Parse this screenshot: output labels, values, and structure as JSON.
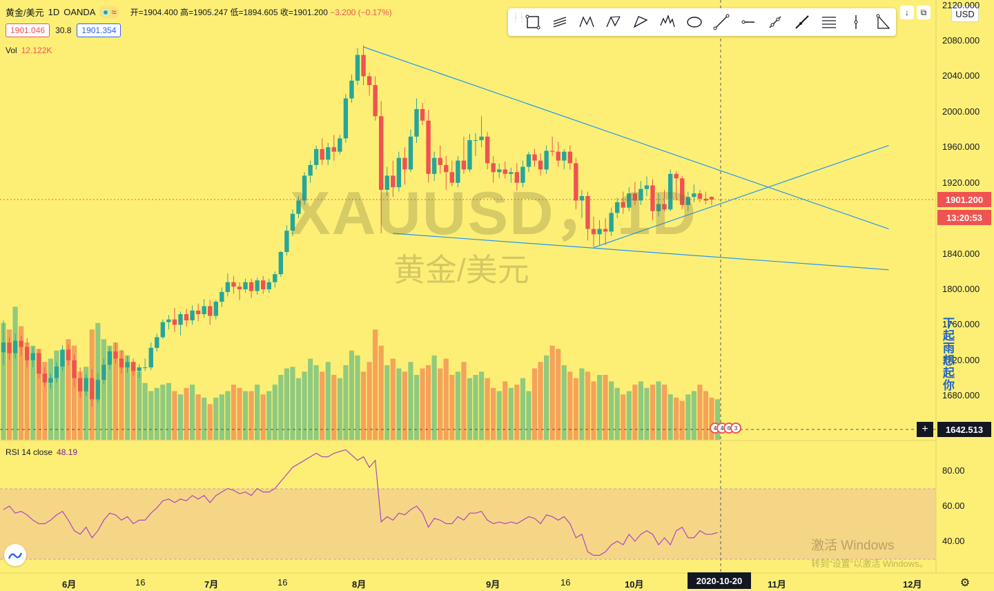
{
  "legend": {
    "symbol": "黄金/美元",
    "interval": "1D",
    "source": "OANDA",
    "ohlc": {
      "open_label": "开=1904.400",
      "high_label": "高=1905.247",
      "low_label": "低=1894.605",
      "close_label": "收=1901.200",
      "change_label": "−3.200 (−0.17%)"
    },
    "bid": "1901.046",
    "spread": "30.8",
    "ask": "1901.354",
    "volume_label": "Vol",
    "volume_value": "12.122K",
    "rsi_label": "RSI 14 close",
    "rsi_value": "48.19"
  },
  "watermark": {
    "ticker": "XAUUSD，1D",
    "name": "黄金/美元"
  },
  "toolbar": {
    "tools": [
      "rectangle-pattern-icon",
      "parallel-channel-icon",
      "xabcd-pattern-icon",
      "abcd-pattern-icon",
      "triangle-pattern-icon",
      "elliott-wave-icon",
      "ellipse-icon",
      "trend-line-icon",
      "horizontal-ray-icon",
      "info-line-icon",
      "extended-line-icon",
      "fib-retracement-icon",
      "vertical-line-icon",
      "triangle-tool-icon"
    ]
  },
  "currency": "USD",
  "price_axis": [
    "2120.000",
    "2080.000",
    "2040.000",
    "2000.000",
    "1960.000",
    "1920.000",
    "1840.000",
    "1800.000",
    "1760.000",
    "1720.000",
    "1680.000"
  ],
  "rsi_axis": [
    "80.00",
    "60.00",
    "40.00"
  ],
  "last_price": "1901.200",
  "countdown": "13:20:53",
  "crosshair_price": "1642.513",
  "crosshair_date": "2020-10-20",
  "time_axis": [
    {
      "label": "6月",
      "bold": true
    },
    {
      "label": "16",
      "bold": false
    },
    {
      "label": "7月",
      "bold": true
    },
    {
      "label": "16",
      "bold": false
    },
    {
      "label": "8月",
      "bold": true
    },
    {
      "label": "9月",
      "bold": true
    },
    {
      "label": "16",
      "bold": false
    },
    {
      "label": "10月",
      "bold": true
    },
    {
      "label": "11月",
      "bold": true
    },
    {
      "label": "12月",
      "bold": true
    }
  ],
  "overlay_text": "下起雨想起你",
  "windows_activation": {
    "title": "激活 Windows",
    "subtitle": "转到\"设置\"以激活 Windows。"
  },
  "event_badges": [
    "4",
    "4",
    "6",
    "3"
  ],
  "colors": {
    "background": "#fdef76",
    "up": "#26a69a",
    "down": "#ef5350",
    "trendline": "#2196f3",
    "rsi_line": "#ab47bc",
    "rsi_band": "rgba(206,147,216,0.25)"
  },
  "chart_data": {
    "type": "candlestick",
    "price_range": [
      1640,
      2120
    ],
    "rsi_range": [
      20,
      100
    ],
    "candles": [
      {
        "o": 1729,
        "h": 1765,
        "l": 1715,
        "c": 1740
      },
      {
        "o": 1740,
        "h": 1746,
        "l": 1720,
        "c": 1728
      },
      {
        "o": 1728,
        "h": 1750,
        "l": 1722,
        "c": 1742
      },
      {
        "o": 1742,
        "h": 1748,
        "l": 1725,
        "c": 1735
      },
      {
        "o": 1735,
        "h": 1745,
        "l": 1712,
        "c": 1720
      },
      {
        "o": 1720,
        "h": 1735,
        "l": 1712,
        "c": 1728
      },
      {
        "o": 1728,
        "h": 1733,
        "l": 1700,
        "c": 1705
      },
      {
        "o": 1705,
        "h": 1712,
        "l": 1690,
        "c": 1695
      },
      {
        "o": 1695,
        "h": 1705,
        "l": 1688,
        "c": 1700
      },
      {
        "o": 1700,
        "h": 1718,
        "l": 1695,
        "c": 1713
      },
      {
        "o": 1713,
        "h": 1737,
        "l": 1708,
        "c": 1732
      },
      {
        "o": 1732,
        "h": 1738,
        "l": 1714,
        "c": 1720
      },
      {
        "o": 1720,
        "h": 1726,
        "l": 1690,
        "c": 1700
      },
      {
        "o": 1700,
        "h": 1712,
        "l": 1678,
        "c": 1685
      },
      {
        "o": 1685,
        "h": 1704,
        "l": 1680,
        "c": 1700
      },
      {
        "o": 1700,
        "h": 1710,
        "l": 1668,
        "c": 1676
      },
      {
        "o": 1676,
        "h": 1706,
        "l": 1672,
        "c": 1698
      },
      {
        "o": 1698,
        "h": 1722,
        "l": 1693,
        "c": 1715
      },
      {
        "o": 1715,
        "h": 1735,
        "l": 1710,
        "c": 1730
      },
      {
        "o": 1730,
        "h": 1740,
        "l": 1716,
        "c": 1722
      },
      {
        "o": 1722,
        "h": 1732,
        "l": 1705,
        "c": 1712
      },
      {
        "o": 1712,
        "h": 1725,
        "l": 1706,
        "c": 1718
      },
      {
        "o": 1718,
        "h": 1722,
        "l": 1703,
        "c": 1708
      },
      {
        "o": 1708,
        "h": 1716,
        "l": 1700,
        "c": 1712
      },
      {
        "o": 1712,
        "h": 1722,
        "l": 1708,
        "c": 1712
      },
      {
        "o": 1712,
        "h": 1740,
        "l": 1709,
        "c": 1734
      },
      {
        "o": 1734,
        "h": 1750,
        "l": 1730,
        "c": 1746
      },
      {
        "o": 1746,
        "h": 1766,
        "l": 1744,
        "c": 1763
      },
      {
        "o": 1763,
        "h": 1771,
        "l": 1755,
        "c": 1766
      },
      {
        "o": 1766,
        "h": 1779,
        "l": 1752,
        "c": 1760
      },
      {
        "o": 1760,
        "h": 1775,
        "l": 1748,
        "c": 1772
      },
      {
        "o": 1772,
        "h": 1778,
        "l": 1758,
        "c": 1765
      },
      {
        "o": 1765,
        "h": 1782,
        "l": 1760,
        "c": 1776
      },
      {
        "o": 1776,
        "h": 1784,
        "l": 1764,
        "c": 1772
      },
      {
        "o": 1772,
        "h": 1789,
        "l": 1768,
        "c": 1781
      },
      {
        "o": 1781,
        "h": 1788,
        "l": 1760,
        "c": 1770
      },
      {
        "o": 1770,
        "h": 1788,
        "l": 1766,
        "c": 1786
      },
      {
        "o": 1786,
        "h": 1802,
        "l": 1780,
        "c": 1797
      },
      {
        "o": 1797,
        "h": 1818,
        "l": 1792,
        "c": 1808
      },
      {
        "o": 1808,
        "h": 1815,
        "l": 1795,
        "c": 1803
      },
      {
        "o": 1803,
        "h": 1808,
        "l": 1788,
        "c": 1800
      },
      {
        "o": 1800,
        "h": 1812,
        "l": 1796,
        "c": 1808
      },
      {
        "o": 1808,
        "h": 1812,
        "l": 1790,
        "c": 1798
      },
      {
        "o": 1798,
        "h": 1813,
        "l": 1794,
        "c": 1810
      },
      {
        "o": 1810,
        "h": 1815,
        "l": 1795,
        "c": 1800
      },
      {
        "o": 1800,
        "h": 1812,
        "l": 1796,
        "c": 1808
      },
      {
        "o": 1808,
        "h": 1820,
        "l": 1802,
        "c": 1817
      },
      {
        "o": 1817,
        "h": 1843,
        "l": 1814,
        "c": 1842
      },
      {
        "o": 1842,
        "h": 1872,
        "l": 1838,
        "c": 1866
      },
      {
        "o": 1866,
        "h": 1890,
        "l": 1860,
        "c": 1885
      },
      {
        "o": 1885,
        "h": 1905,
        "l": 1880,
        "c": 1900
      },
      {
        "o": 1900,
        "h": 1932,
        "l": 1895,
        "c": 1928
      },
      {
        "o": 1928,
        "h": 1945,
        "l": 1920,
        "c": 1940
      },
      {
        "o": 1940,
        "h": 1962,
        "l": 1935,
        "c": 1958
      },
      {
        "o": 1958,
        "h": 1970,
        "l": 1940,
        "c": 1946
      },
      {
        "o": 1946,
        "h": 1965,
        "l": 1940,
        "c": 1960
      },
      {
        "o": 1960,
        "h": 1974,
        "l": 1945,
        "c": 1955
      },
      {
        "o": 1955,
        "h": 1974,
        "l": 1952,
        "c": 1970
      },
      {
        "o": 1970,
        "h": 2020,
        "l": 1965,
        "c": 2015
      },
      {
        "o": 2015,
        "h": 2042,
        "l": 2010,
        "c": 2035
      },
      {
        "o": 2035,
        "h": 2072,
        "l": 2030,
        "c": 2064
      },
      {
        "o": 2064,
        "h": 2075,
        "l": 2030,
        "c": 2040
      },
      {
        "o": 2040,
        "h": 2044,
        "l": 2018,
        "c": 2030
      },
      {
        "o": 2030,
        "h": 2040,
        "l": 1990,
        "c": 1995
      },
      {
        "o": 1995,
        "h": 2012,
        "l": 1863,
        "c": 1912
      },
      {
        "o": 1912,
        "h": 1938,
        "l": 1905,
        "c": 1928
      },
      {
        "o": 1928,
        "h": 1945,
        "l": 1904,
        "c": 1915
      },
      {
        "o": 1915,
        "h": 1955,
        "l": 1910,
        "c": 1948
      },
      {
        "o": 1948,
        "h": 1960,
        "l": 1918,
        "c": 1935
      },
      {
        "o": 1935,
        "h": 1980,
        "l": 1932,
        "c": 1972
      },
      {
        "o": 1972,
        "h": 2015,
        "l": 1965,
        "c": 2003
      },
      {
        "o": 2003,
        "h": 2010,
        "l": 1985,
        "c": 1990
      },
      {
        "o": 1990,
        "h": 2002,
        "l": 1920,
        "c": 1930
      },
      {
        "o": 1930,
        "h": 1955,
        "l": 1922,
        "c": 1948
      },
      {
        "o": 1948,
        "h": 1962,
        "l": 1930,
        "c": 1940
      },
      {
        "o": 1940,
        "h": 1950,
        "l": 1912,
        "c": 1932
      },
      {
        "o": 1932,
        "h": 1945,
        "l": 1916,
        "c": 1920
      },
      {
        "o": 1920,
        "h": 1950,
        "l": 1915,
        "c": 1945
      },
      {
        "o": 1945,
        "h": 1972,
        "l": 1930,
        "c": 1935
      },
      {
        "o": 1935,
        "h": 1975,
        "l": 1932,
        "c": 1968
      },
      {
        "o": 1968,
        "h": 1976,
        "l": 1950,
        "c": 1968
      },
      {
        "o": 1968,
        "h": 1995,
        "l": 1960,
        "c": 1972
      },
      {
        "o": 1972,
        "h": 1977,
        "l": 1935,
        "c": 1942
      },
      {
        "o": 1942,
        "h": 1950,
        "l": 1920,
        "c": 1932
      },
      {
        "o": 1932,
        "h": 1942,
        "l": 1925,
        "c": 1935
      },
      {
        "o": 1935,
        "h": 1944,
        "l": 1925,
        "c": 1930
      },
      {
        "o": 1930,
        "h": 1937,
        "l": 1920,
        "c": 1932
      },
      {
        "o": 1932,
        "h": 1942,
        "l": 1911,
        "c": 1920
      },
      {
        "o": 1920,
        "h": 1945,
        "l": 1915,
        "c": 1938
      },
      {
        "o": 1938,
        "h": 1955,
        "l": 1932,
        "c": 1952
      },
      {
        "o": 1952,
        "h": 1958,
        "l": 1938,
        "c": 1945
      },
      {
        "o": 1945,
        "h": 1953,
        "l": 1928,
        "c": 1935
      },
      {
        "o": 1935,
        "h": 1962,
        "l": 1930,
        "c": 1956
      },
      {
        "o": 1956,
        "h": 1972,
        "l": 1950,
        "c": 1955
      },
      {
        "o": 1955,
        "h": 1966,
        "l": 1938,
        "c": 1945
      },
      {
        "o": 1945,
        "h": 1958,
        "l": 1935,
        "c": 1955
      },
      {
        "o": 1955,
        "h": 1962,
        "l": 1935,
        "c": 1942
      },
      {
        "o": 1942,
        "h": 1948,
        "l": 1890,
        "c": 1900
      },
      {
        "o": 1900,
        "h": 1912,
        "l": 1880,
        "c": 1905
      },
      {
        "o": 1905,
        "h": 1910,
        "l": 1855,
        "c": 1868
      },
      {
        "o": 1868,
        "h": 1882,
        "l": 1848,
        "c": 1862
      },
      {
        "o": 1862,
        "h": 1878,
        "l": 1850,
        "c": 1868
      },
      {
        "o": 1868,
        "h": 1880,
        "l": 1850,
        "c": 1865
      },
      {
        "o": 1865,
        "h": 1892,
        "l": 1860,
        "c": 1886
      },
      {
        "o": 1886,
        "h": 1903,
        "l": 1880,
        "c": 1898
      },
      {
        "o": 1898,
        "h": 1910,
        "l": 1885,
        "c": 1892
      },
      {
        "o": 1892,
        "h": 1915,
        "l": 1888,
        "c": 1908
      },
      {
        "o": 1908,
        "h": 1921,
        "l": 1895,
        "c": 1900
      },
      {
        "o": 1900,
        "h": 1922,
        "l": 1895,
        "c": 1913
      },
      {
        "o": 1913,
        "h": 1927,
        "l": 1905,
        "c": 1917
      },
      {
        "o": 1917,
        "h": 1924,
        "l": 1878,
        "c": 1888
      },
      {
        "o": 1888,
        "h": 1908,
        "l": 1882,
        "c": 1896
      },
      {
        "o": 1896,
        "h": 1912,
        "l": 1888,
        "c": 1890
      },
      {
        "o": 1890,
        "h": 1935,
        "l": 1888,
        "c": 1930
      },
      {
        "o": 1930,
        "h": 1933,
        "l": 1900,
        "c": 1925
      },
      {
        "o": 1925,
        "h": 1928,
        "l": 1890,
        "c": 1895
      },
      {
        "o": 1895,
        "h": 1910,
        "l": 1888,
        "c": 1904
      },
      {
        "o": 1904,
        "h": 1918,
        "l": 1898,
        "c": 1908
      },
      {
        "o": 1908,
        "h": 1912,
        "l": 1898,
        "c": 1902
      },
      {
        "o": 1902,
        "h": 1910,
        "l": 1896,
        "c": 1900
      },
      {
        "o": 1904,
        "h": 1905,
        "l": 1895,
        "c": 1901
      }
    ],
    "volumes": [
      72,
      68,
      82,
      70,
      60,
      58,
      56,
      48,
      50,
      55,
      55,
      62,
      58,
      42,
      45,
      68,
      72,
      62,
      58,
      60,
      55,
      52,
      48,
      42,
      35,
      30,
      32,
      34,
      35,
      30,
      28,
      32,
      34,
      28,
      26,
      22,
      26,
      28,
      30,
      34,
      32,
      30,
      30,
      34,
      28,
      30,
      34,
      40,
      44,
      45,
      38,
      42,
      50,
      46,
      42,
      48,
      40,
      38,
      46,
      55,
      52,
      42,
      48,
      68,
      58,
      46,
      50,
      44,
      42,
      48,
      40,
      44,
      46,
      52,
      44,
      50,
      40,
      42,
      48,
      38,
      40,
      42,
      38,
      32,
      30,
      36,
      32,
      34,
      38,
      30,
      44,
      48,
      52,
      58,
      56,
      46,
      42,
      38,
      44,
      42,
      36,
      40,
      40,
      36,
      32,
      28,
      30,
      34,
      36,
      32,
      34,
      36,
      34,
      28,
      26,
      24,
      28,
      30,
      34,
      30,
      26,
      25
    ],
    "rsi": [
      58,
      60,
      56,
      57,
      55,
      52,
      50,
      50,
      52,
      55,
      57,
      52,
      46,
      44,
      48,
      42,
      46,
      52,
      56,
      55,
      52,
      54,
      50,
      52,
      52,
      56,
      59,
      63,
      64,
      62,
      64,
      63,
      66,
      64,
      66,
      62,
      66,
      68,
      70,
      69,
      67,
      68,
      66,
      70,
      68,
      68,
      70,
      74,
      78,
      82,
      84,
      86,
      88,
      90,
      88,
      88,
      90,
      91,
      92,
      89,
      86,
      88,
      82,
      86,
      51,
      54,
      52,
      56,
      55,
      58,
      60,
      56,
      48,
      53,
      52,
      50,
      50,
      54,
      52,
      56,
      56,
      57,
      52,
      50,
      51,
      50,
      51,
      50,
      52,
      54,
      53,
      50,
      55,
      54,
      52,
      54,
      50,
      42,
      44,
      34,
      32,
      32,
      34,
      38,
      40,
      38,
      44,
      40,
      44,
      46,
      44,
      38,
      42,
      38,
      46,
      48,
      42,
      42,
      46,
      44,
      44,
      45
    ],
    "trendlines": [
      {
        "name": "upper-descending",
        "p1": [
          61,
          2073
        ],
        "p2": [
          150,
          1868
        ]
      },
      {
        "name": "lower-descending",
        "p1": [
          66,
          1863
        ],
        "p2": [
          150,
          1822
        ]
      },
      {
        "name": "rising-support",
        "p1": [
          100,
          1847
        ],
        "p2": [
          150,
          1962
        ]
      }
    ]
  }
}
